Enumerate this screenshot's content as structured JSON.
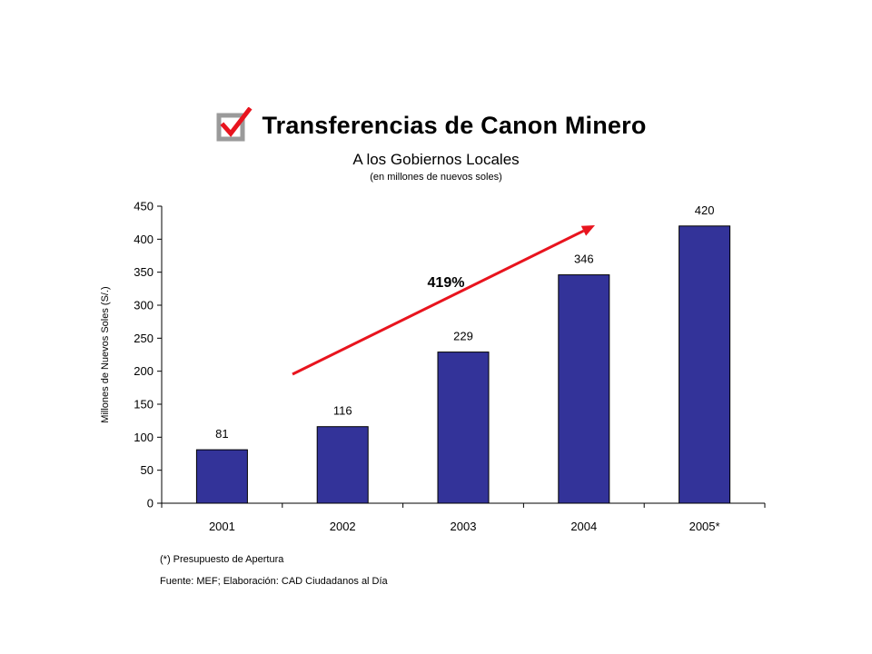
{
  "header": {
    "title": "Transferencias de Canon Minero",
    "subtitle": "A los Gobiernos Locales",
    "units": "(en millones de nuevos soles)",
    "icon": "checkbox-checked-icon"
  },
  "chart_data": {
    "type": "bar",
    "categories": [
      "2001",
      "2002",
      "2003",
      "2004",
      "2005*"
    ],
    "values": [
      81,
      116,
      229,
      346,
      420
    ],
    "data_labels": [
      "81",
      "116",
      "229",
      "346",
      "420"
    ],
    "title": "",
    "xlabel": "",
    "ylabel": "Millones de Nuevos Soles (S/.)",
    "ylim": [
      0,
      450
    ],
    "yticks": [
      0,
      50,
      100,
      150,
      200,
      250,
      300,
      350,
      400,
      450
    ],
    "grid": false,
    "legend": "none",
    "bar_color": "#333399",
    "annotations": [
      {
        "text": "419%",
        "type": "arrow",
        "color": "#e8141e",
        "from_category": "2002",
        "to_category": "2004"
      }
    ]
  },
  "footnotes": {
    "note": "(*) Presupuesto de Apertura",
    "source": "Fuente: MEF; Elaboración: CAD Ciudadanos al Día"
  }
}
